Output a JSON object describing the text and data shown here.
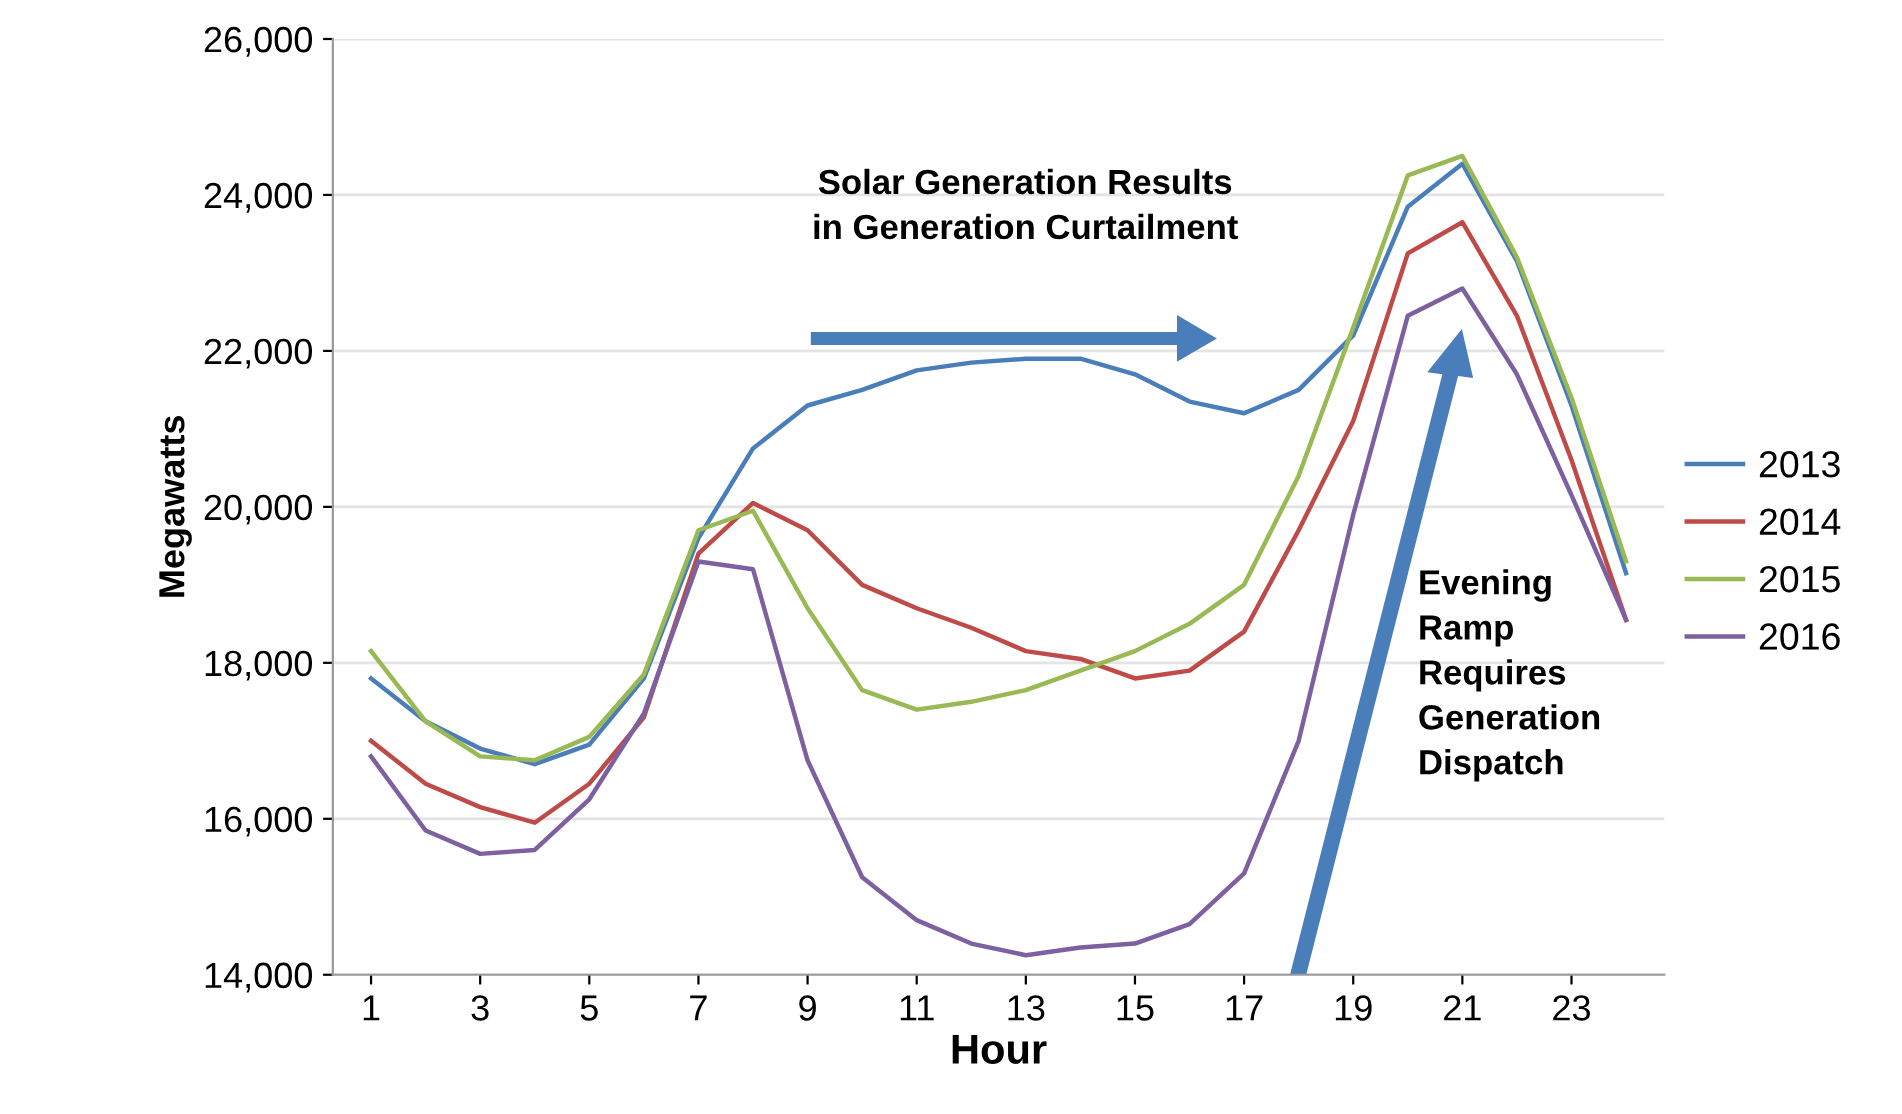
{
  "chart_data": {
    "type": "line",
    "xlabel": "Hour",
    "ylabel": "Megawatts",
    "x": [
      1,
      2,
      3,
      4,
      5,
      6,
      7,
      8,
      9,
      10,
      11,
      12,
      13,
      14,
      15,
      16,
      17,
      18,
      19,
      20,
      21,
      22,
      23,
      24
    ],
    "series": [
      {
        "name": "2013",
        "color": "#4a7ebb",
        "values": [
          17800,
          17250,
          16900,
          16700,
          16950,
          17800,
          19600,
          20750,
          21300,
          21500,
          21750,
          21850,
          21900,
          21900,
          21700,
          21350,
          21200,
          21500,
          22200,
          23850,
          24400,
          23150,
          21300,
          19150
        ]
      },
      {
        "name": "2014",
        "color": "#be4b48",
        "values": [
          17000,
          16450,
          16150,
          15950,
          16450,
          17300,
          19400,
          20050,
          19700,
          19000,
          18700,
          18450,
          18150,
          18050,
          17800,
          17900,
          18400,
          19700,
          21100,
          23250,
          23650,
          22450,
          20600,
          18550
        ]
      },
      {
        "name": "2015",
        "color": "#98b954",
        "values": [
          18150,
          17250,
          16800,
          16750,
          17050,
          17850,
          19700,
          19950,
          18700,
          17650,
          17400,
          17500,
          17650,
          17900,
          18150,
          18500,
          19000,
          20400,
          22300,
          24250,
          24500,
          23200,
          21400,
          19300
        ]
      },
      {
        "name": "2016",
        "color": "#7d60a0",
        "values": [
          16800,
          15850,
          15550,
          15600,
          16250,
          17350,
          19300,
          19200,
          16750,
          15250,
          14700,
          14400,
          14250,
          14350,
          14400,
          14650,
          15300,
          17000,
          19900,
          22450,
          22800,
          21700,
          20150,
          18550
        ]
      }
    ],
    "xlim": [
      0.3,
      24.7
    ],
    "xticks": [
      1,
      3,
      5,
      7,
      9,
      11,
      13,
      15,
      17,
      19,
      21,
      23
    ],
    "ylim": [
      14000,
      26000
    ],
    "yticks": [
      {
        "value": 14000,
        "label": "14,000"
      },
      {
        "value": 16000,
        "label": "16,000"
      },
      {
        "value": 18000,
        "label": "18,000"
      },
      {
        "value": 20000,
        "label": "20,000"
      },
      {
        "value": 22000,
        "label": "22,000"
      },
      {
        "value": 24000,
        "label": "24,000"
      },
      {
        "value": 26000,
        "label": "26,000"
      }
    ],
    "grid": "y",
    "legend": "right",
    "marker": "none",
    "line_style": "solid",
    "annotations": [
      "Solar Generation Results\nin Generation Curtailment",
      "Evening\nRamp\nRequires\nGeneration\nDispatch"
    ]
  }
}
